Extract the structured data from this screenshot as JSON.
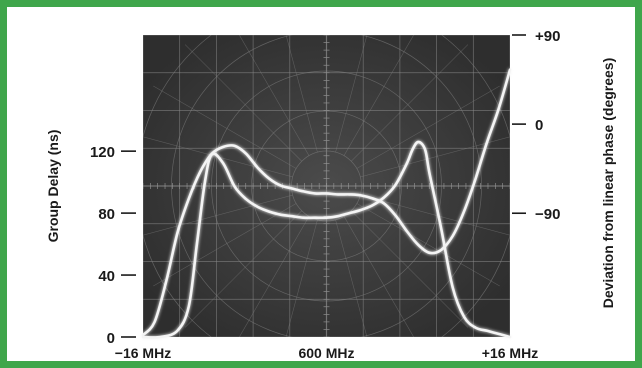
{
  "chart_data": {
    "type": "line",
    "title": "",
    "x": {
      "tick_labels": [
        "−16 MHz",
        "600 MHz",
        "+16 MHz"
      ],
      "tick_values": [
        -16,
        0,
        16
      ],
      "range": [
        -16,
        16
      ]
    },
    "y_left": {
      "label": "Group Delay (ns)",
      "tick_labels": [
        "0",
        "40",
        "80",
        "120"
      ],
      "tick_values": [
        0,
        40,
        80,
        120
      ],
      "range": [
        0,
        195
      ]
    },
    "y_right": {
      "label": "Deviation from linear phase (degrees)",
      "tick_labels": [
        "+90",
        "0",
        "−90"
      ],
      "tick_values": [
        90,
        0,
        -90
      ],
      "range": [
        -215,
        90
      ]
    },
    "grid": true,
    "series": [
      {
        "axis": "left",
        "x": [
          -16,
          -14.5,
          -13,
          -12,
          -11.3,
          -10.6,
          -10,
          -9,
          -8,
          -7,
          -6,
          -5,
          -4,
          -3,
          -2,
          -1,
          0,
          1,
          2,
          3,
          4,
          5,
          6,
          7,
          7.5,
          8,
          8.6,
          9,
          10,
          11,
          12,
          13,
          14,
          15,
          16
        ],
        "values": [
          0,
          0,
          4,
          20,
          60,
          100,
          118,
          112,
          97,
          89,
          84,
          81,
          79,
          78,
          77,
          77,
          77,
          78,
          80,
          82,
          85,
          90,
          98,
          112,
          121,
          126,
          121,
          105,
          70,
          32,
          13,
          6,
          4,
          2,
          0
        ]
      },
      {
        "axis": "right",
        "x": [
          -16,
          -15,
          -14,
          -13,
          -12,
          -11,
          -10,
          -9,
          -8,
          -7,
          -6,
          -5,
          -4,
          -3,
          -2,
          -1,
          0,
          1,
          2,
          3,
          4,
          5,
          6,
          7,
          8,
          9,
          10,
          11,
          12,
          13,
          14,
          15,
          16
        ],
        "values": [
          -213,
          -200,
          -160,
          -110,
          -75,
          -48,
          -30,
          -23,
          -22,
          -30,
          -44,
          -55,
          -62,
          -65,
          -68,
          -70,
          -70,
          -71,
          -71,
          -72,
          -75,
          -80,
          -92,
          -108,
          -122,
          -130,
          -127,
          -113,
          -88,
          -55,
          -18,
          15,
          55
        ]
      }
    ]
  }
}
